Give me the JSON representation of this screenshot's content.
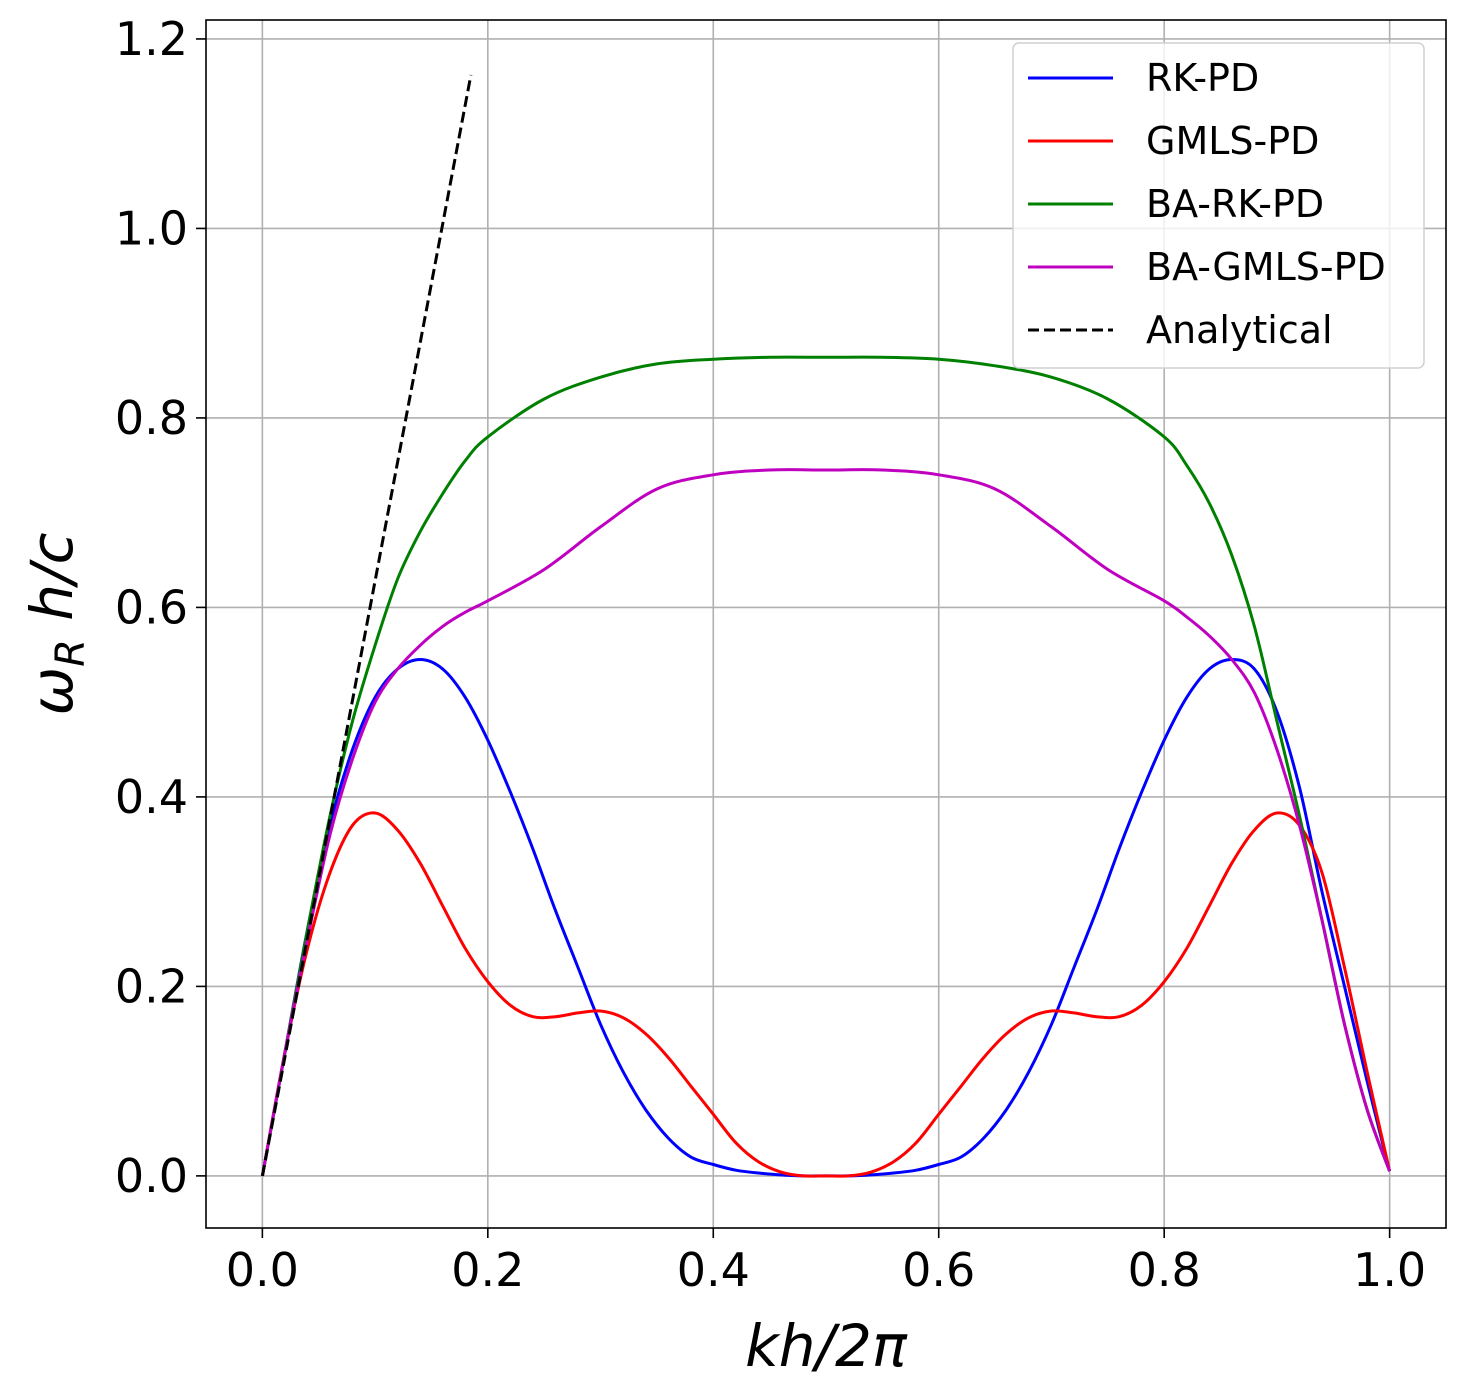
{
  "chart_data": {
    "type": "line",
    "title": "",
    "xlabel": "kh/2π",
    "ylabel": "ω_R h/c",
    "xlim": [
      -0.05,
      1.05
    ],
    "ylim": [
      -0.055,
      1.22
    ],
    "grid": true,
    "legend_position": "top-right",
    "x_ticks": [
      0.0,
      0.2,
      0.4,
      0.6,
      0.8,
      1.0
    ],
    "x_tick_labels": [
      "0.0",
      "0.2",
      "0.4",
      "0.6",
      "0.8",
      "1.0"
    ],
    "y_ticks": [
      0.0,
      0.2,
      0.4,
      0.6,
      0.8,
      1.0,
      1.2
    ],
    "y_tick_labels": [
      "0.0",
      "0.2",
      "0.4",
      "0.6",
      "0.8",
      "1.0",
      "1.2"
    ],
    "series": [
      {
        "name": "RK-PD",
        "color": "#0000ff",
        "dash": "solid",
        "x": [
          0.0,
          0.02,
          0.04,
          0.06,
          0.08,
          0.1,
          0.12,
          0.14,
          0.16,
          0.18,
          0.2,
          0.22,
          0.24,
          0.26,
          0.28,
          0.3,
          0.32,
          0.34,
          0.36,
          0.38,
          0.4,
          0.42,
          0.44,
          0.46,
          0.48,
          0.5,
          0.52,
          0.54,
          0.56,
          0.58,
          0.6,
          0.62,
          0.64,
          0.66,
          0.68,
          0.7,
          0.72,
          0.74,
          0.76,
          0.78,
          0.8,
          0.82,
          0.84,
          0.86,
          0.88,
          0.9,
          0.92,
          0.94,
          0.96,
          0.98,
          1.0
        ],
        "y": [
          0.0,
          0.13,
          0.26,
          0.37,
          0.45,
          0.505,
          0.535,
          0.545,
          0.535,
          0.505,
          0.46,
          0.405,
          0.345,
          0.28,
          0.22,
          0.16,
          0.11,
          0.07,
          0.04,
          0.02,
          0.012,
          0.006,
          0.003,
          0.001,
          0.0,
          0.0,
          0.0,
          0.001,
          0.003,
          0.006,
          0.012,
          0.02,
          0.04,
          0.07,
          0.11,
          0.16,
          0.22,
          0.28,
          0.345,
          0.405,
          0.46,
          0.505,
          0.535,
          0.545,
          0.535,
          0.49,
          0.41,
          0.3,
          0.2,
          0.1,
          0.005
        ]
      },
      {
        "name": "GMLS-PD",
        "color": "#ff0000",
        "dash": "solid",
        "x": [
          0.0,
          0.02,
          0.04,
          0.06,
          0.08,
          0.1,
          0.12,
          0.14,
          0.16,
          0.18,
          0.2,
          0.22,
          0.24,
          0.26,
          0.28,
          0.3,
          0.32,
          0.34,
          0.36,
          0.38,
          0.4,
          0.42,
          0.44,
          0.46,
          0.48,
          0.5,
          0.52,
          0.54,
          0.56,
          0.58,
          0.6,
          0.62,
          0.64,
          0.66,
          0.68,
          0.7,
          0.72,
          0.74,
          0.76,
          0.78,
          0.8,
          0.82,
          0.84,
          0.86,
          0.88,
          0.9,
          0.92,
          0.94,
          0.96,
          0.98,
          1.0
        ],
        "y": [
          0.0,
          0.13,
          0.24,
          0.32,
          0.37,
          0.383,
          0.365,
          0.33,
          0.285,
          0.24,
          0.205,
          0.18,
          0.168,
          0.168,
          0.172,
          0.174,
          0.167,
          0.15,
          0.125,
          0.095,
          0.065,
          0.035,
          0.015,
          0.004,
          0.0,
          0.0,
          0.0,
          0.004,
          0.015,
          0.035,
          0.065,
          0.095,
          0.125,
          0.15,
          0.167,
          0.174,
          0.172,
          0.168,
          0.168,
          0.18,
          0.205,
          0.24,
          0.285,
          0.33,
          0.365,
          0.383,
          0.37,
          0.32,
          0.22,
          0.11,
          0.005
        ]
      },
      {
        "name": "BA-RK-PD",
        "color": "#008000",
        "dash": "solid",
        "x": [
          0.0,
          0.02,
          0.04,
          0.06,
          0.08,
          0.1,
          0.12,
          0.14,
          0.16,
          0.18,
          0.2,
          0.25,
          0.3,
          0.35,
          0.4,
          0.45,
          0.5,
          0.55,
          0.6,
          0.65,
          0.7,
          0.75,
          0.8,
          0.82,
          0.84,
          0.86,
          0.88,
          0.9,
          0.92,
          0.94,
          0.96,
          0.98,
          1.0
        ],
        "y": [
          0.0,
          0.13,
          0.26,
          0.38,
          0.48,
          0.56,
          0.63,
          0.68,
          0.72,
          0.755,
          0.78,
          0.82,
          0.843,
          0.857,
          0.862,
          0.864,
          0.864,
          0.864,
          0.862,
          0.855,
          0.843,
          0.82,
          0.78,
          0.75,
          0.71,
          0.655,
          0.58,
          0.48,
          0.38,
          0.27,
          0.16,
          0.07,
          0.005
        ]
      },
      {
        "name": "BA-GMLS-PD",
        "color": "#c000c0",
        "dash": "solid",
        "x": [
          0.0,
          0.02,
          0.04,
          0.06,
          0.08,
          0.1,
          0.12,
          0.14,
          0.16,
          0.18,
          0.2,
          0.25,
          0.3,
          0.35,
          0.4,
          0.45,
          0.5,
          0.55,
          0.6,
          0.65,
          0.7,
          0.75,
          0.8,
          0.82,
          0.84,
          0.86,
          0.88,
          0.9,
          0.92,
          0.94,
          0.96,
          0.98,
          1.0
        ],
        "y": [
          0.0,
          0.13,
          0.25,
          0.36,
          0.44,
          0.5,
          0.535,
          0.56,
          0.58,
          0.595,
          0.607,
          0.64,
          0.685,
          0.725,
          0.74,
          0.745,
          0.745,
          0.745,
          0.74,
          0.725,
          0.685,
          0.64,
          0.607,
          0.59,
          0.57,
          0.545,
          0.51,
          0.45,
          0.37,
          0.27,
          0.16,
          0.07,
          0.005
        ]
      },
      {
        "name": "Analytical",
        "color": "#000000",
        "dash": "dashed",
        "x": [
          0.0,
          0.185
        ],
        "y": [
          0.0,
          1.162
        ]
      }
    ]
  }
}
